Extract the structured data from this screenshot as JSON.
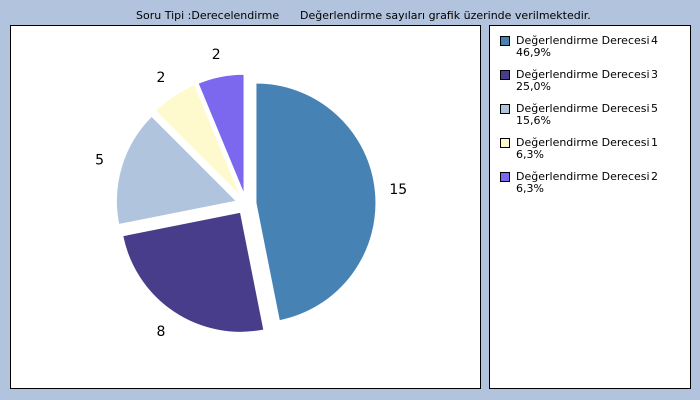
{
  "header": {
    "question_type": "Soru Tipi :Derecelendirme",
    "note": "Değerlendirme sayıları grafik üzerinde verilmektedir."
  },
  "chart_data": {
    "type": "pie",
    "title": "",
    "slices": [
      {
        "label": "Değerlendirme Derecesi",
        "level": "4",
        "value": 15,
        "percent": "46,9%",
        "color": "#4682b4"
      },
      {
        "label": "Değerlendirme Derecesi",
        "level": "3",
        "value": 8,
        "percent": "25,0%",
        "color": "#483d8b"
      },
      {
        "label": "Değerlendirme Derecesi",
        "level": "5",
        "value": 5,
        "percent": "15,6%",
        "color": "#b0c4de"
      },
      {
        "label": "Değerlendirme Derecesi",
        "level": "1",
        "value": 2,
        "percent": "6,3%",
        "color": "#fffacd"
      },
      {
        "label": "Değerlendirme Derecesi",
        "level": "2",
        "value": 2,
        "percent": "6,3%",
        "color": "#7b68ee"
      }
    ],
    "exploded": true,
    "legend_position": "right"
  }
}
